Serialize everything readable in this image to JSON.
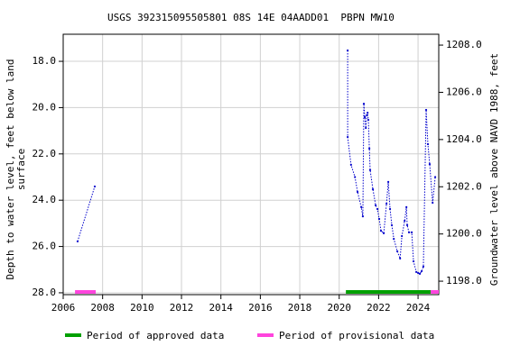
{
  "chart_data": {
    "type": "line",
    "title": "USGS 392315095505801 08S 14E 04AADD01  PBPN MW10",
    "ylabel_lines": [
      "Depth to water level, feet below land",
      "surface"
    ],
    "y2label": "Groundwater level above NAVD 1988, feet",
    "xlim": [
      2006,
      2025.05
    ],
    "xticks": [
      2006,
      2008,
      2010,
      2012,
      2014,
      2016,
      2018,
      2020,
      2022,
      2024
    ],
    "ylim": [
      28.08,
      16.83
    ],
    "yticks": [
      {
        "value": 18,
        "label": "18.0"
      },
      {
        "value": 20,
        "label": "20.0"
      },
      {
        "value": 22,
        "label": "22.0"
      },
      {
        "value": 24,
        "label": "24.0"
      },
      {
        "value": 26,
        "label": "26.0"
      },
      {
        "value": 28,
        "label": "28.0"
      }
    ],
    "y2lim": [
      1197.43,
      1208.46
    ],
    "y2ticks": [
      {
        "value": 1198,
        "label": "1198.0"
      },
      {
        "value": 1200,
        "label": "1200.0"
      },
      {
        "value": 1202,
        "label": "1202.0"
      },
      {
        "value": 1204,
        "label": "1204.0"
      },
      {
        "value": 1206,
        "label": "1206.0"
      },
      {
        "value": 1208,
        "label": "1208.0"
      }
    ],
    "grid": true,
    "series": [
      {
        "color": "#0000cc",
        "x": [
          2006.73,
          2007.6,
          null,
          2020.43,
          2020.43,
          2020.6,
          2020.8,
          2020.93,
          2021.12,
          2021.2,
          2021.25,
          2021.3,
          2021.35,
          2021.4,
          2021.44,
          2021.48,
          2021.53,
          2021.57,
          2021.71,
          2021.85,
          2021.94,
          2022.03,
          2022.12,
          2022.26,
          2022.4,
          2022.49,
          2022.58,
          2022.67,
          2022.77,
          2022.95,
          2023.09,
          2023.18,
          2023.32,
          2023.41,
          2023.45,
          2023.54,
          2023.68,
          2023.77,
          2023.91,
          2024.0,
          2024.09,
          2024.18,
          2024.27,
          2024.41,
          2024.5,
          2024.59,
          2024.74,
          2024.87
        ],
        "values": [
          25.78,
          23.41,
          null,
          17.53,
          21.27,
          22.47,
          23.0,
          23.64,
          24.3,
          24.7,
          19.83,
          20.41,
          20.88,
          20.33,
          20.22,
          20.53,
          21.77,
          22.7,
          23.53,
          24.22,
          24.38,
          24.81,
          25.32,
          25.43,
          24.15,
          23.21,
          24.38,
          25.08,
          25.67,
          26.21,
          26.52,
          25.55,
          24.89,
          24.3,
          25.08,
          25.39,
          25.39,
          26.64,
          27.1,
          27.14,
          27.18,
          27.07,
          26.87,
          20.1,
          21.58,
          22.44,
          24.11,
          23.0
        ]
      }
    ],
    "periods": [
      {
        "name": "Period of approved data",
        "color": "#00a000",
        "spans": [
          [
            2020.34,
            2024.64
          ]
        ]
      },
      {
        "name": "Period of provisional data",
        "color": "#ff44dd",
        "spans": [
          [
            2006.6,
            2007.65
          ],
          [
            2024.64,
            2025.05
          ]
        ]
      }
    ]
  }
}
